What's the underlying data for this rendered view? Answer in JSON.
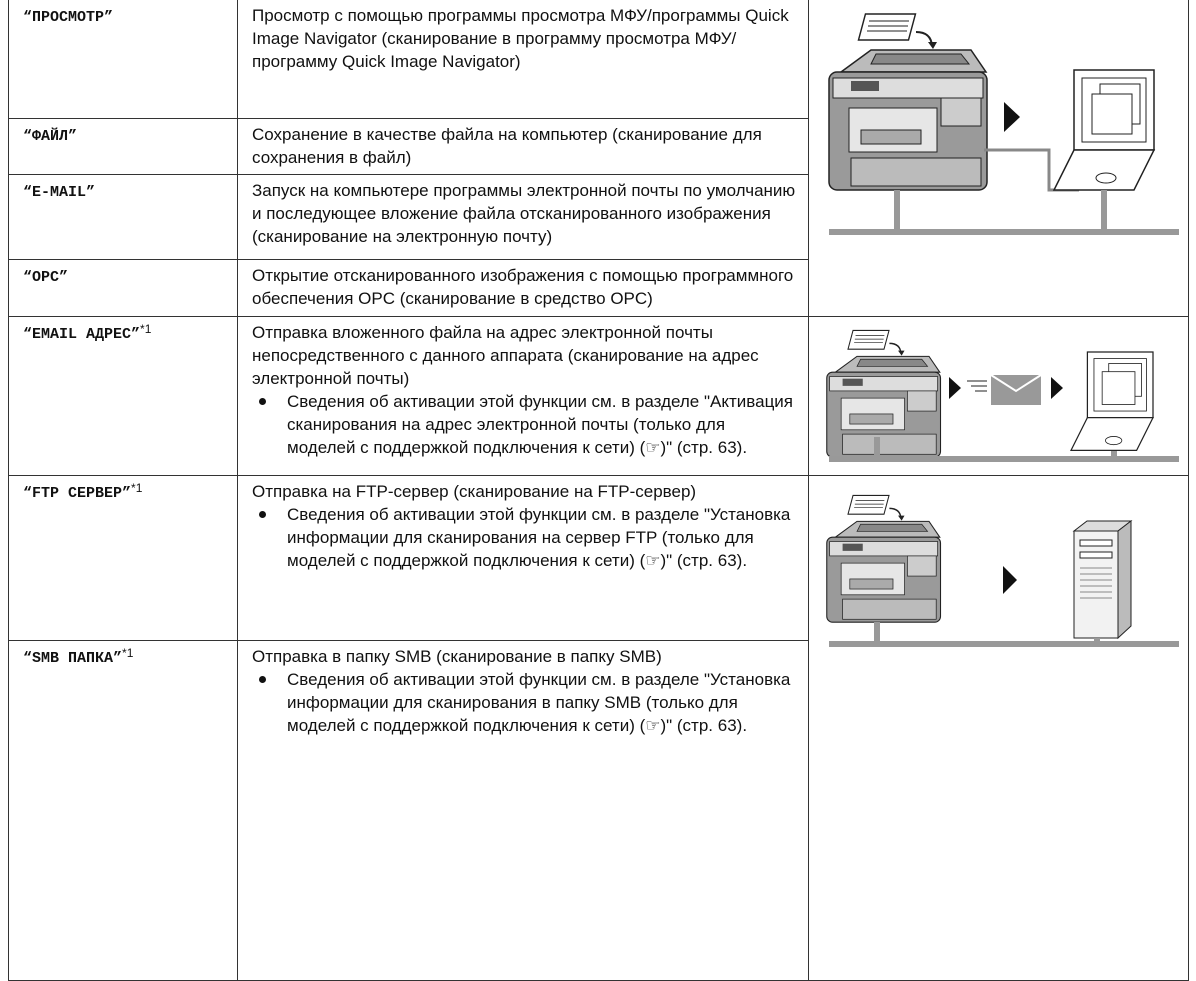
{
  "table": {
    "rows": [
      {
        "mode": "“ПРОСМОТР”",
        "description": "Просмотр с помощью программы просмотра МФУ/программы Quick Image Navigator (сканирование в программу просмотра МФУ/программу Quick Image Navigator)"
      },
      {
        "mode": "“ФАЙЛ”",
        "description": "Сохранение в качестве файла на компьютер (сканирование для сохранения в файл)"
      },
      {
        "mode": "“E-MAIL”",
        "description": "Запуск на компьютере программы электронной почты по умолчанию и последующее вложение файла отсканированного изображения (сканирование на электронную почту)"
      },
      {
        "mode": "“OPC”",
        "description": "Открытие отсканированного изображения с помощью программного обеспечения OPC (сканирование в средство OPC)"
      },
      {
        "mode": "“EMAIL АДРЕС”",
        "note": "*1",
        "description": "Отправка вложенного файла на адрес электронной почты непосредственного с данного аппарата (сканирование на адрес электронной почты)",
        "bullet": "Сведения об активации этой функции см. в разделе \"Активация сканирования на адрес электронной почты (только для моделей с поддержкой подключения к сети) (☞)\" (стр. 63)."
      },
      {
        "mode": "“FTP СЕРВЕР”",
        "note": "*1",
        "description": "Отправка на FTP-сервер (сканирование на FTP-сервер)",
        "bullet": "Сведения об активации этой функции см. в разделе \"Установка информации для сканирования на сервер FTP (только для моделей с поддержкой подключения к сети) (☞)\" (стр. 63)."
      },
      {
        "mode": "“SMB ПАПКА”",
        "note": "*1",
        "description": "Отправка в папку SMB (сканирование в папку SMB)",
        "bullet": "Сведения об активации этой функции см. в разделе \"Установка информации для сканирования в папку SMB (только для моделей с поддержкой подключения к сети) (☞)\" (стр. 63)."
      }
    ]
  }
}
